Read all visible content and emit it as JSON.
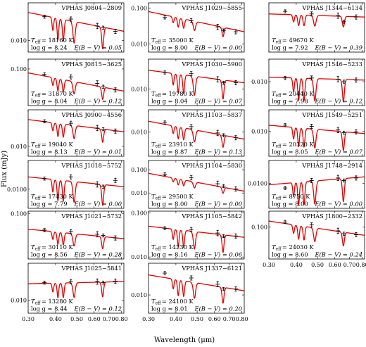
{
  "figure": {
    "xlabel": "Wavelength (μm)",
    "ylabel": "Flux (mJy)"
  },
  "chart_data": [
    {
      "type": "line",
      "name": "VPHAS J0804−2809",
      "teff_label": "T",
      "teff_sub": "eff",
      "teff": "= 18160 K",
      "logg": "log g = 8.24",
      "ebv": "E(B − V) = 0.05",
      "xlim": [
        0.3,
        0.82
      ],
      "ylim": [
        0.0065,
        0.04
      ],
      "ytick_values": [
        0.01
      ],
      "ytick_labels": [
        "0.010"
      ],
      "xtick_values": [
        0.3,
        0.4,
        0.5,
        0.6,
        0.7,
        0.8
      ],
      "xtick_labels": [],
      "cont": [
        0.028,
        0.014
      ],
      "depth": 0.55,
      "obs_x": [
        0.356,
        0.47,
        0.62,
        0.66,
        0.75
      ],
      "obs_y": [
        0.024,
        0.022,
        0.017,
        0.016,
        0.014
      ]
    },
    {
      "type": "line",
      "name": "VPHAS J1029−5855",
      "teff_label": "T",
      "teff_sub": "eff",
      "teff": "= 35000 K",
      "logg": "log g = 8.00",
      "ebv": "E(B − V) = 0.00",
      "xlim": [
        0.3,
        0.82
      ],
      "ylim": [
        0.006,
        0.14
      ],
      "ytick_values": [
        0.01,
        0.1
      ],
      "ytick_labels": [
        "0.010",
        "0.100"
      ],
      "xtick_values": [
        0.3,
        0.4,
        0.5,
        0.6,
        0.7,
        0.8
      ],
      "xtick_labels": [],
      "cont": [
        0.08,
        0.022
      ],
      "depth": 0.45,
      "obs_x": [
        0.356,
        0.47,
        0.62,
        0.66,
        0.75
      ],
      "obs_y": [
        0.055,
        0.045,
        0.03,
        0.024,
        0.022
      ]
    },
    {
      "type": "line",
      "name": "VPHAS J1344−6134",
      "teff_label": "T",
      "teff_sub": "eff",
      "teff": "= 49670 K",
      "logg": "log g = 7.92",
      "ebv": "E(B − V) = 0.39",
      "xlim": [
        0.3,
        0.82
      ],
      "ylim": [
        0.0085,
        0.018
      ],
      "ytick_values": [],
      "ytick_labels": [],
      "xtick_values": [
        0.3,
        0.4,
        0.5,
        0.6,
        0.7,
        0.8
      ],
      "xtick_labels": [],
      "cont": [
        0.0152,
        0.0145
      ],
      "depth": 0.15,
      "obs_x": [
        0.356,
        0.47,
        0.62,
        0.66,
        0.75
      ],
      "obs_y": [
        0.0158,
        0.0152,
        0.0148,
        0.0135,
        0.0145
      ]
    },
    {
      "type": "line",
      "name": "VPHAS J0815−3625",
      "teff_label": "T",
      "teff_sub": "eff",
      "teff": "= 31870 K",
      "logg": "log g = 8.04",
      "ebv": "E(B − V) = 0.12",
      "xlim": [
        0.3,
        0.82
      ],
      "ylim": [
        0.022,
        0.15
      ],
      "ytick_values": [
        0.1
      ],
      "ytick_labels": [
        "0.100"
      ],
      "xtick_values": [
        0.3,
        0.4,
        0.5,
        0.6,
        0.7,
        0.8
      ],
      "xtick_labels": [],
      "cont": [
        0.085,
        0.04
      ],
      "depth": 0.4,
      "obs_x": [
        0.356,
        0.47,
        0.62,
        0.66,
        0.75
      ],
      "obs_y": [
        0.08,
        0.072,
        0.055,
        0.048,
        0.042
      ]
    },
    {
      "type": "line",
      "name": "VPHAS J1030−5900",
      "teff_label": "T",
      "teff_sub": "eff",
      "teff": "= 19780 K",
      "logg": "log g = 8.04",
      "ebv": "E(B − V) = 0.07",
      "xlim": [
        0.3,
        0.82
      ],
      "ylim": [
        0.005,
        0.035
      ],
      "ytick_values": [
        0.01
      ],
      "ytick_labels": [
        "0.010"
      ],
      "xtick_values": [
        0.3,
        0.4,
        0.5,
        0.6,
        0.7,
        0.8
      ],
      "xtick_labels": [],
      "cont": [
        0.022,
        0.013
      ],
      "depth": 0.55,
      "obs_x": [
        0.356,
        0.47,
        0.62,
        0.66,
        0.75
      ],
      "obs_y": [
        0.02,
        0.019,
        0.015,
        0.013,
        0.013
      ]
    },
    {
      "type": "line",
      "name": "VPHAS J1546−5233",
      "teff_label": "T",
      "teff_sub": "eff",
      "teff": "= 20440 K",
      "logg": "log g = 7.98",
      "ebv": "E(B − V) = 0.12",
      "xlim": [
        0.3,
        0.82
      ],
      "ylim": [
        0.0048,
        0.02
      ],
      "ytick_values": [
        0.01
      ],
      "ytick_labels": [
        "0.010"
      ],
      "xtick_values": [
        0.3,
        0.4,
        0.5,
        0.6,
        0.7,
        0.8
      ],
      "xtick_labels": [],
      "cont": [
        0.0115,
        0.0105
      ],
      "depth": 0.5,
      "obs_x": [
        0.356,
        0.47,
        0.62,
        0.66,
        0.75
      ],
      "obs_y": [
        0.0112,
        0.0112,
        0.0108,
        0.01,
        0.0105
      ]
    },
    {
      "type": "line",
      "name": "VPHAS J0900−4556",
      "teff_label": "T",
      "teff_sub": "eff",
      "teff": "= 19040 K",
      "logg": "log g = 8.13",
      "ebv": "E(B − V) = 0.01",
      "xlim": [
        0.3,
        0.82
      ],
      "ylim": [
        0.0055,
        0.09
      ],
      "ytick_values": [
        0.01
      ],
      "ytick_labels": [
        "0.010"
      ],
      "xtick_values": [
        0.3,
        0.4,
        0.5,
        0.6,
        0.7,
        0.8
      ],
      "xtick_labels": [],
      "cont": [
        0.05,
        0.024
      ],
      "depth": 0.55,
      "obs_x": [
        0.356,
        0.47,
        0.62,
        0.66,
        0.75
      ],
      "obs_y": [
        0.045,
        0.04,
        0.03,
        0.028,
        0.025
      ]
    },
    {
      "type": "line",
      "name": "VPHAS J1103−5837",
      "teff_label": "T",
      "teff_sub": "eff",
      "teff": "= 23910 K",
      "logg": "log g = 8.87",
      "ebv": "E(B − V) = 0.13",
      "xlim": [
        0.3,
        0.82
      ],
      "ylim": [
        0.003,
        0.03
      ],
      "ytick_values": [
        0.01
      ],
      "ytick_labels": [
        "0.010"
      ],
      "xtick_values": [
        0.3,
        0.4,
        0.5,
        0.6,
        0.7,
        0.8
      ],
      "xtick_labels": [],
      "cont": [
        0.017,
        0.007
      ],
      "depth": 0.45,
      "obs_x": [
        0.356,
        0.47,
        0.62,
        0.66,
        0.75
      ],
      "obs_y": [
        0.016,
        0.013,
        0.0095,
        0.0085,
        0.0075
      ]
    },
    {
      "type": "line",
      "name": "VPHAS J1549−5251",
      "teff_label": "T",
      "teff_sub": "eff",
      "teff": "= 20320 K",
      "logg": "log g = 8.05",
      "ebv": "E(B − V) = 0.07",
      "xlim": [
        0.3,
        0.82
      ],
      "ylim": [
        0.004,
        0.022
      ],
      "ytick_values": [
        0.01
      ],
      "ytick_labels": [
        "0.010"
      ],
      "xtick_values": [
        0.3,
        0.4,
        0.5,
        0.6,
        0.7,
        0.8
      ],
      "xtick_labels": [],
      "cont": [
        0.0125,
        0.0092
      ],
      "depth": 0.5,
      "obs_x": [
        0.356,
        0.47,
        0.62,
        0.66,
        0.75
      ],
      "obs_y": [
        0.0125,
        0.012,
        0.0105,
        0.0095,
        0.0098
      ]
    },
    {
      "type": "line",
      "name": "VPHAS J1018−5752",
      "teff_label": "T",
      "teff_sub": "eff",
      "teff": "= 17430 K",
      "logg": "log g = 7.79",
      "ebv": "E(B − V) = 0.00",
      "xlim": [
        0.3,
        0.82
      ],
      "ylim": [
        0.0048,
        0.03
      ],
      "ytick_values": [
        0.01
      ],
      "ytick_labels": [
        "0.0100"
      ],
      "xtick_values": [
        0.3,
        0.4,
        0.5,
        0.6,
        0.7,
        0.8
      ],
      "xtick_labels": [],
      "cont": [
        0.016,
        0.011
      ],
      "depth": 0.55,
      "obs_x": [
        0.356,
        0.47,
        0.62,
        0.66,
        0.75
      ],
      "obs_y": [
        0.015,
        0.016,
        0.012,
        0.011,
        0.014
      ]
    },
    {
      "type": "line",
      "name": "VPHAS J1104−5830",
      "teff_label": "T",
      "teff_sub": "eff",
      "teff": "= 29500 K",
      "logg": "log g = 8.00",
      "ebv": "E(B − V) = 0.00",
      "xlim": [
        0.3,
        0.82
      ],
      "ylim": [
        0.0022,
        0.25
      ],
      "ytick_values": [
        0.01,
        0.1
      ],
      "ytick_labels": [
        "0.010",
        "0.100"
      ],
      "xtick_values": [
        0.3,
        0.4,
        0.5,
        0.6,
        0.7,
        0.8
      ],
      "xtick_labels": [],
      "cont": [
        0.07,
        0.012
      ],
      "depth": 0.45,
      "obs_x": [
        0.356,
        0.47,
        0.62,
        0.66,
        0.75
      ],
      "obs_y": [
        0.065,
        0.045,
        0.025,
        0.02,
        0.015
      ]
    },
    {
      "type": "line",
      "name": "VPHAS J1748−2914",
      "teff_label": "T",
      "teff_sub": "eff",
      "teff": "= 8750 K",
      "logg": "log g = 8.00",
      "ebv": "E(B − V) = 0.00",
      "xlim": [
        0.3,
        0.82
      ],
      "ylim": [
        0.0042,
        0.022
      ],
      "ytick_values": [
        0.01
      ],
      "ytick_labels": [
        "0.0100"
      ],
      "xtick_values": [
        0.3,
        0.4,
        0.5,
        0.6,
        0.7,
        0.8
      ],
      "xtick_labels": [],
      "cont": [
        0.0095,
        0.0125
      ],
      "depth": 0.55,
      "obs_x": [
        0.356,
        0.47,
        0.62,
        0.66,
        0.75
      ],
      "obs_y": [
        0.0085,
        0.011,
        0.012,
        0.011,
        0.012
      ]
    },
    {
      "type": "line",
      "name": "VPHAS J1021−5732",
      "teff_label": "T",
      "teff_sub": "eff",
      "teff": "= 30110 K",
      "logg": "log g = 8.56",
      "ebv": "E(B − V) = 0.28",
      "xlim": [
        0.3,
        0.82
      ],
      "ylim": [
        0.015,
        0.11
      ],
      "ytick_values": [
        0.1
      ],
      "ytick_labels": [
        "0.100"
      ],
      "xtick_values": [
        0.3,
        0.4,
        0.5,
        0.6,
        0.7,
        0.8
      ],
      "xtick_labels": [],
      "cont": [
        0.052,
        0.035
      ],
      "depth": 0.4,
      "obs_x": [
        0.356,
        0.47,
        0.62,
        0.66,
        0.75
      ],
      "obs_y": [
        0.05,
        0.047,
        0.042,
        0.04,
        0.036
      ]
    },
    {
      "type": "line",
      "name": "VPHAS J1105−5842",
      "teff_label": "T",
      "teff_sub": "eff",
      "teff": "= 14230 K",
      "logg": "log g = 8.16",
      "ebv": "E(B − V) = 0.06",
      "xlim": [
        0.3,
        0.82
      ],
      "ylim": [
        0.009,
        0.11
      ],
      "ytick_values": [
        0.01,
        0.1
      ],
      "ytick_labels": [
        "0.010",
        "0.100"
      ],
      "xtick_values": [
        0.3,
        0.4,
        0.5,
        0.6,
        0.7,
        0.8
      ],
      "xtick_labels": [],
      "cont": [
        0.05,
        0.028
      ],
      "depth": 0.6,
      "obs_x": [
        0.356,
        0.47,
        0.62,
        0.66,
        0.75
      ],
      "obs_y": [
        0.045,
        0.042,
        0.035,
        0.03,
        0.03
      ]
    },
    {
      "type": "line",
      "name": "VPHAS J1800−2332",
      "teff_label": "T",
      "teff_sub": "eff",
      "teff": "= 24030 K",
      "logg": "log g = 8.60",
      "ebv": "E(B − V) = 0.24",
      "xlim": [
        0.3,
        0.82
      ],
      "ylim": [
        0.025,
        0.2
      ],
      "ytick_values": [
        0.1
      ],
      "ytick_labels": [
        "0.100"
      ],
      "xtick_values": [
        0.3,
        0.4,
        0.5,
        0.6,
        0.7,
        0.8
      ],
      "xtick_labels": [
        "0.30",
        "0.40",
        "0.50",
        "0.60",
        "0.70",
        "0.80"
      ],
      "cont": [
        0.13,
        0.07
      ],
      "depth": 0.45,
      "obs_x": [
        0.356,
        0.47,
        0.62,
        0.66,
        0.75
      ],
      "obs_y": [
        0.125,
        0.11,
        0.085,
        0.075,
        0.072
      ]
    },
    {
      "type": "line",
      "name": "VPHAS J1025−5841",
      "teff_label": "T",
      "teff_sub": "eff",
      "teff": "= 13280 K",
      "logg": "log g = 8.44",
      "ebv": "E(B − V) = 0.12",
      "xlim": [
        0.3,
        0.82
      ],
      "ylim": [
        0.0045,
        0.1
      ],
      "ytick_values": [
        0.01
      ],
      "ytick_labels": [
        "0.010"
      ],
      "xtick_values": [
        0.3,
        0.4,
        0.5,
        0.6,
        0.7,
        0.8
      ],
      "xtick_labels": [
        "0.30",
        "0.40",
        "0.50",
        "0.60",
        "0.70",
        "0.80"
      ],
      "cont": [
        0.028,
        0.032
      ],
      "depth": 0.6,
      "obs_x": [
        0.356,
        0.47,
        0.62,
        0.66,
        0.75
      ],
      "obs_y": [
        0.03,
        0.032,
        0.032,
        0.03,
        0.033
      ]
    },
    {
      "type": "line",
      "name": "VPHAS J1337−6121",
      "teff_label": "T",
      "teff_sub": "eff",
      "teff": "= 24100 K",
      "logg": "log g = 8.01",
      "ebv": "E(B − V) = 0.20",
      "xlim": [
        0.3,
        0.82
      ],
      "ylim": [
        0.0045,
        0.04
      ],
      "ytick_values": [
        0.01
      ],
      "ytick_labels": [
        "0.010"
      ],
      "xtick_values": [
        0.3,
        0.4,
        0.5,
        0.6,
        0.7,
        0.8
      ],
      "xtick_labels": [
        "0.30",
        "0.40",
        "0.50",
        "0.60",
        "0.70",
        "0.80"
      ],
      "cont": [
        0.024,
        0.012
      ],
      "depth": 0.5,
      "obs_x": [
        0.356,
        0.47,
        0.62,
        0.66,
        0.75
      ],
      "obs_y": [
        0.026,
        0.021,
        0.016,
        0.013,
        0.013
      ]
    }
  ]
}
